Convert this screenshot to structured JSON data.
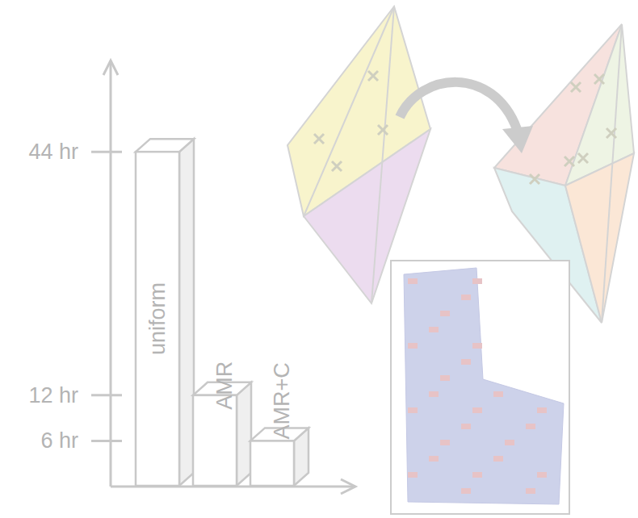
{
  "chart_data": {
    "type": "bar",
    "categories": [
      "uniform",
      "AMR",
      "AMR+C"
    ],
    "values": [
      44,
      12,
      6
    ],
    "color": "#ffffff",
    "ylim": [
      0,
      56
    ],
    "yticks": [
      {
        "value": 6,
        "label": "6 hr"
      },
      {
        "value": 12,
        "label": "12 hr"
      },
      {
        "value": 44,
        "label": "44 hr"
      }
    ],
    "grid": false
  }
}
